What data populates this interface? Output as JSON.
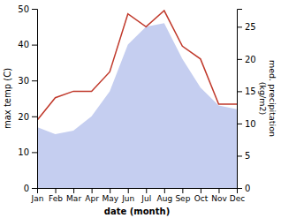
{
  "chart_data": {
    "type": "line",
    "categories": [
      "Jan",
      "Feb",
      "Mar",
      "Apr",
      "May",
      "Jun",
      "Jul",
      "Aug",
      "Sep",
      "Oct",
      "Nov",
      "Dec"
    ],
    "series": [
      {
        "type": "area",
        "color": "#c5cef0",
        "values": [
          17,
          15,
          16,
          20,
          27,
          40,
          45,
          46,
          36,
          28,
          23,
          22
        ]
      },
      {
        "type": "line",
        "color": "#c0392b",
        "axis": "y2",
        "values": [
          10.5,
          14,
          15,
          15,
          18,
          27,
          25,
          27.5,
          22,
          20,
          13,
          13
        ]
      }
    ],
    "xlabel": "date (month)",
    "ylabel": "max temp (C)",
    "y2label": "med. precipitation\n(kg/m2)",
    "ylim": [
      0,
      50
    ],
    "yticks": [
      0,
      10,
      20,
      30,
      40,
      50
    ],
    "y2lim": [
      0,
      27.78
    ],
    "y2ticks": [
      0,
      5,
      10,
      15,
      20,
      25
    ],
    "grid": false
  }
}
